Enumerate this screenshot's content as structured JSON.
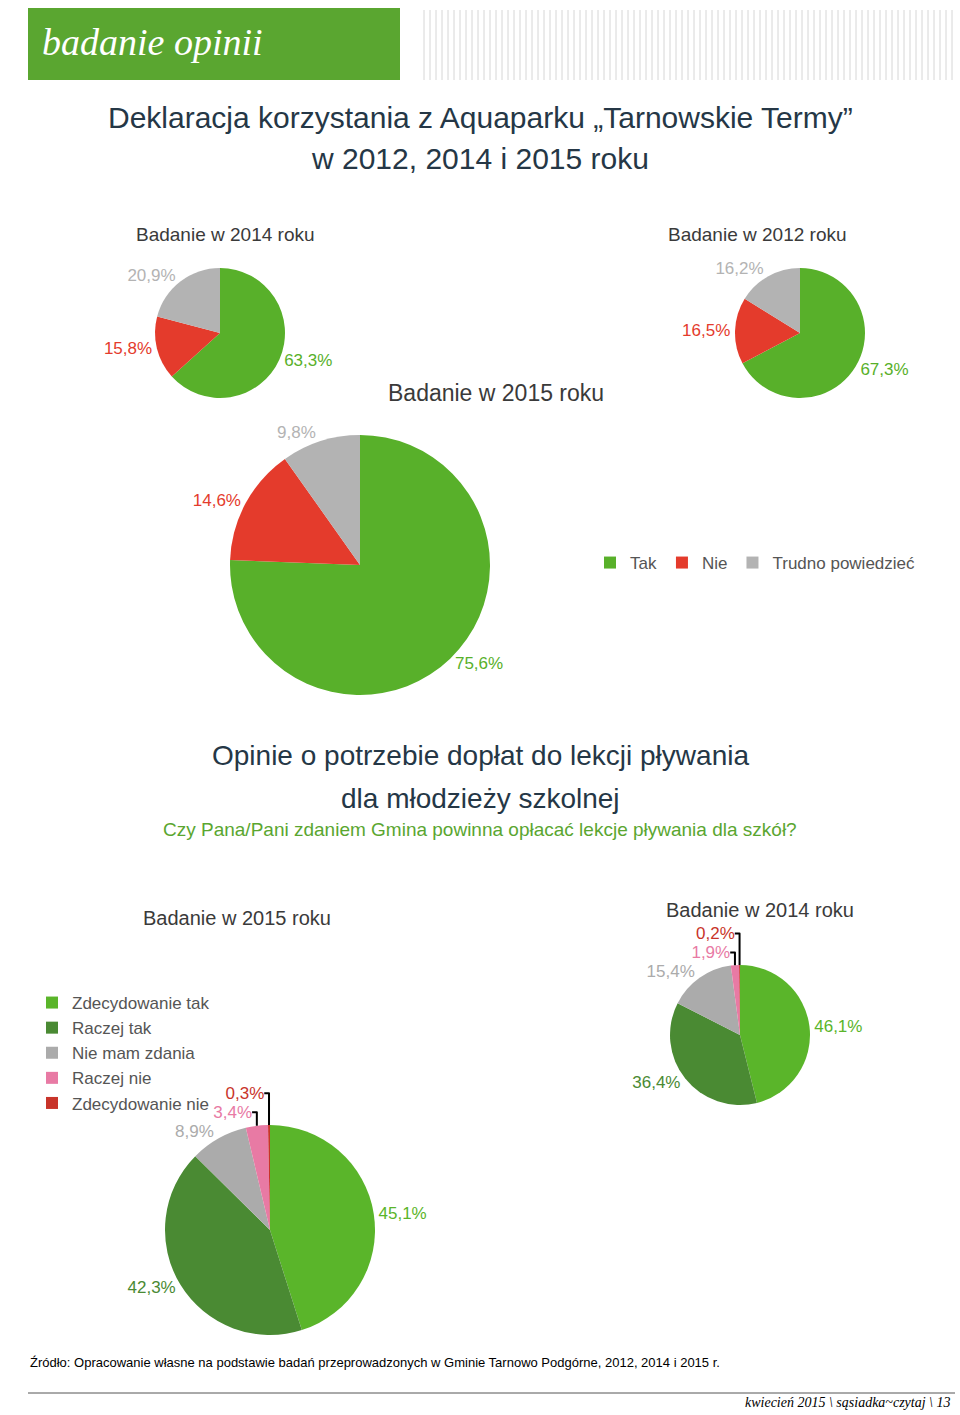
{
  "header": "badanie opinii",
  "sections": [
    {
      "title": [
        "Deklaracja korzystania z Aquaparku „Tarnowskie Termy”",
        "w 2012, 2014 i 2015 roku"
      ]
    },
    {
      "title": [
        "Opinie o potrzebie dopłat do lekcji pływania",
        "dla młodzieży szkolnej"
      ],
      "subtitle": "Czy Pana/Pani zdaniem Gmina powinna opłacać lekcje pływania dla szkół?"
    }
  ],
  "chart_data": [
    {
      "type": "pie",
      "title": "Badanie w 2014 roku",
      "categories": [
        "Tak",
        "Nie",
        "Trudno powiedzieć"
      ],
      "values": [
        63.3,
        15.8,
        20.9
      ],
      "value_labels": [
        "63,3%",
        "15,8%",
        "20,9%"
      ],
      "colors": [
        "#58b02a",
        "#e43b2c",
        "#b3b3b3"
      ],
      "data_labels": true
    },
    {
      "type": "pie",
      "title": "Badanie w 2012 roku",
      "categories": [
        "Tak",
        "Nie",
        "Trudno powiedzieć"
      ],
      "values": [
        67.3,
        16.5,
        16.2
      ],
      "value_labels": [
        "67,3%",
        "16,5%",
        "16,2%"
      ],
      "colors": [
        "#58b02a",
        "#e43b2c",
        "#b3b3b3"
      ],
      "data_labels": true
    },
    {
      "type": "pie",
      "title": "Badanie w 2015 roku",
      "categories": [
        "Tak",
        "Nie",
        "Trudno powiedzieć"
      ],
      "values": [
        75.6,
        14.6,
        9.8
      ],
      "value_labels": [
        "75,6%",
        "14,6%",
        "9,8%"
      ],
      "colors": [
        "#58b02a",
        "#e43b2c",
        "#b3b3b3"
      ],
      "data_labels": true,
      "legend": "right"
    },
    {
      "type": "pie",
      "title": "Badanie w 2015 roku",
      "categories": [
        "Zdecydowanie tak",
        "Raczej tak",
        "Nie mam zdania",
        "Raczej nie",
        "Zdecydowanie nie"
      ],
      "values": [
        45.1,
        42.3,
        8.9,
        3.4,
        0.3
      ],
      "value_labels": [
        "45,1%",
        "42,3%",
        "8,9%",
        "3,4%",
        "0,3%"
      ],
      "colors": [
        "#5ab52a",
        "#4a8a33",
        "#ababab",
        "#e87aa4",
        "#c8342a"
      ],
      "data_labels": true,
      "legend": "top left"
    },
    {
      "type": "pie",
      "title": "Badanie w 2014 roku",
      "categories": [
        "Zdecydowanie tak",
        "Raczej tak",
        "Nie mam zdania",
        "Raczej nie",
        "Zdecydowanie nie"
      ],
      "values": [
        46.1,
        36.4,
        15.4,
        1.9,
        0.2
      ],
      "value_labels": [
        "46,1%",
        "36,4%",
        "15,4%",
        "1,9%",
        "0,2%"
      ],
      "colors": [
        "#5ab52a",
        "#4a8a33",
        "#ababab",
        "#e87aa4",
        "#c8342a"
      ],
      "data_labels": true
    }
  ],
  "source": "Źródło: Opracowanie własne na podstawie badań przeprowadzonych w Gminie Tarnowo Podgórne, 2012, 2014 i 2015 r.",
  "footer": "kwiecień 2015 \\ sąsiadka~czytaj \\ 13"
}
